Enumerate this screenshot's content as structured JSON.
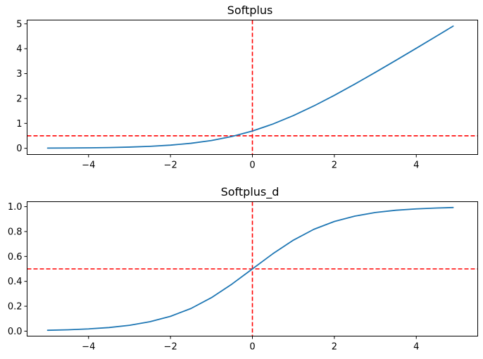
{
  "chart_data": [
    {
      "type": "line",
      "title": "Softplus",
      "xlabel": "",
      "ylabel": "",
      "xlim": [
        -5.5,
        5.5
      ],
      "ylim": [
        -0.25,
        5.15
      ],
      "xticks": [
        -4,
        -2,
        0,
        2,
        4
      ],
      "xtick_labels": [
        "−4",
        "−2",
        "0",
        "2",
        "4"
      ],
      "yticks": [
        0,
        1,
        2,
        3,
        4,
        5
      ],
      "ytick_labels": [
        "0",
        "1",
        "2",
        "3",
        "4",
        "5"
      ],
      "grid": false,
      "series": [
        {
          "color": "#1f77b4",
          "x": [
            -5,
            -4.5,
            -4,
            -3.5,
            -3,
            -2.5,
            -2,
            -1.5,
            -1,
            -0.5,
            0,
            0.5,
            1,
            1.5,
            2,
            2.5,
            3,
            3.5,
            4,
            4.5,
            4.9
          ],
          "y": [
            0.007,
            0.011,
            0.018,
            0.03,
            0.049,
            0.079,
            0.127,
            0.201,
            0.313,
            0.474,
            0.693,
            0.974,
            1.313,
            1.701,
            2.127,
            2.579,
            3.049,
            3.53,
            4.018,
            4.511,
            4.907
          ]
        }
      ],
      "reference_lines": {
        "color": "#ff0000",
        "vertical_x": 0,
        "horizontal_y": 0.5
      }
    },
    {
      "type": "line",
      "title": "Softplus_d",
      "xlabel": "",
      "ylabel": "",
      "xlim": [
        -5.5,
        5.5
      ],
      "ylim": [
        -0.04,
        1.04
      ],
      "xticks": [
        -4,
        -2,
        0,
        2,
        4
      ],
      "xtick_labels": [
        "−4",
        "−2",
        "0",
        "2",
        "4"
      ],
      "yticks": [
        0,
        0.2,
        0.4,
        0.6,
        0.8,
        1.0
      ],
      "ytick_labels": [
        "0.0",
        "0.2",
        "0.4",
        "0.6",
        "0.8",
        "1.0"
      ],
      "grid": false,
      "series": [
        {
          "color": "#1f77b4",
          "x": [
            -5,
            -4.5,
            -4,
            -3.5,
            -3,
            -2.5,
            -2,
            -1.5,
            -1,
            -0.5,
            0,
            0.5,
            1,
            1.5,
            2,
            2.5,
            3,
            3.5,
            4,
            4.5,
            4.9
          ],
          "y": [
            0.007,
            0.011,
            0.018,
            0.029,
            0.047,
            0.076,
            0.119,
            0.182,
            0.269,
            0.378,
            0.5,
            0.622,
            0.731,
            0.818,
            0.881,
            0.924,
            0.953,
            0.971,
            0.982,
            0.989,
            0.993
          ]
        }
      ],
      "reference_lines": {
        "color": "#ff0000",
        "vertical_x": 0,
        "horizontal_y": 0.5
      }
    }
  ]
}
